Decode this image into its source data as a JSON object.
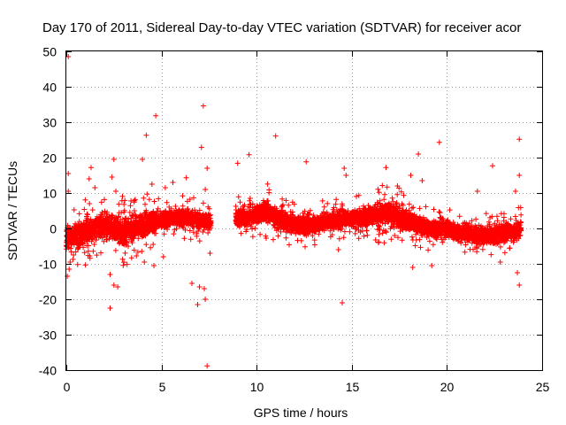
{
  "chart_data": {
    "type": "scatter",
    "title": "Day 170 of 2011, Sidereal Day-to-day VTEC variation (SDTVAR) for receiver acor",
    "xlabel": "GPS time / hours",
    "ylabel": "SDTVAR / TECUs",
    "xlim": [
      0,
      25
    ],
    "ylim": [
      -40,
      50
    ],
    "xticks": [
      "0",
      "5",
      "10",
      "15",
      "20",
      "25"
    ],
    "yticks": [
      "-40",
      "-30",
      "-20",
      "-10",
      "0",
      "10",
      "20",
      "30",
      "40",
      "50"
    ],
    "grid": true,
    "marker": "+",
    "color": "#ff0000",
    "data_gap": [
      7.6,
      8.9
    ],
    "series": [
      {
        "name": "SDTVAR",
        "band": {
          "x": [
            0.0,
            0.5,
            1.0,
            1.5,
            2.0,
            2.5,
            3.0,
            3.5,
            4.0,
            4.5,
            5.0,
            5.5,
            6.0,
            6.5,
            7.0,
            7.5,
            9.0,
            9.5,
            10.0,
            10.5,
            11.0,
            11.5,
            12.0,
            12.5,
            13.0,
            13.5,
            14.0,
            14.5,
            15.0,
            15.5,
            16.0,
            16.5,
            17.0,
            17.5,
            18.0,
            18.5,
            19.0,
            19.5,
            20.0,
            20.5,
            21.0,
            21.5,
            22.0,
            22.5,
            23.0,
            23.5,
            23.9
          ],
          "center": [
            -3,
            -2,
            -1,
            0,
            1,
            0,
            -1,
            0,
            1,
            2,
            2,
            3,
            3,
            3,
            2,
            2,
            3,
            3,
            4,
            5,
            3,
            2,
            1,
            1,
            1,
            2,
            2,
            3,
            3,
            3,
            4,
            4,
            4,
            3,
            2,
            1,
            0,
            0,
            0,
            -1,
            -1,
            -2,
            -2,
            -2,
            -1,
            -1,
            0
          ],
          "spread": [
            4,
            4,
            5,
            4,
            4,
            5,
            5,
            4,
            4,
            4,
            3,
            3,
            3,
            3,
            3,
            3,
            3,
            3,
            3,
            4,
            3,
            3,
            3,
            3,
            3,
            3,
            3,
            3,
            3,
            3,
            3,
            4,
            4,
            4,
            3,
            3,
            3,
            3,
            3,
            3,
            3,
            3,
            3,
            3,
            3,
            3,
            3
          ]
        },
        "outliers": [
          [
            0.1,
            48.5
          ],
          [
            0.1,
            15.5
          ],
          [
            0.1,
            10.5
          ],
          [
            0.05,
            -13.5
          ],
          [
            0.15,
            -11.5
          ],
          [
            0.2,
            -9.5
          ],
          [
            1.3,
            17.2
          ],
          [
            1.5,
            11.5
          ],
          [
            1.2,
            14.0
          ],
          [
            2.3,
            -22.5
          ],
          [
            2.5,
            19.5
          ],
          [
            2.4,
            14.5
          ],
          [
            2.6,
            10.5
          ],
          [
            2.7,
            -16.5
          ],
          [
            2.5,
            -16.0
          ],
          [
            2.3,
            -13.0
          ],
          [
            4.2,
            26.3
          ],
          [
            4.7,
            31.8
          ],
          [
            4.0,
            19.5
          ],
          [
            4.5,
            12.5
          ],
          [
            4.6,
            -10.5
          ],
          [
            4.1,
            -9.5
          ],
          [
            5.2,
            11.5
          ],
          [
            5.6,
            13.0
          ],
          [
            5.1,
            -8.0
          ],
          [
            6.6,
            -15.5
          ],
          [
            7.0,
            -16.5
          ],
          [
            6.9,
            -21.5
          ],
          [
            7.3,
            -20.0
          ],
          [
            7.25,
            -17.0
          ],
          [
            7.1,
            22.9
          ],
          [
            7.2,
            34.6
          ],
          [
            7.4,
            17.0
          ],
          [
            7.4,
            -38.8
          ],
          [
            7.55,
            -7.0
          ],
          [
            7.3,
            11.0
          ],
          [
            6.3,
            14.3
          ],
          [
            9.0,
            18.4
          ],
          [
            9.6,
            20.8
          ],
          [
            11.0,
            26.1
          ],
          [
            12.6,
            18.8
          ],
          [
            14.5,
            -21.0
          ],
          [
            14.6,
            17.0
          ],
          [
            14.7,
            15.0
          ],
          [
            14.3,
            -6.0
          ],
          [
            16.4,
            -4.0
          ],
          [
            16.8,
            17.2
          ],
          [
            17.4,
            12.0
          ],
          [
            18.1,
            15.0
          ],
          [
            18.5,
            21.0
          ],
          [
            18.7,
            13.5
          ],
          [
            19.6,
            24.3
          ],
          [
            19.2,
            -10.5
          ],
          [
            18.2,
            -11.0
          ],
          [
            22.4,
            17.7
          ],
          [
            21.6,
            10.5
          ],
          [
            23.6,
            10.5
          ],
          [
            23.8,
            25.2
          ],
          [
            23.8,
            15.0
          ],
          [
            23.8,
            -16.0
          ],
          [
            23.7,
            -12.5
          ],
          [
            22.8,
            -9.5
          ]
        ]
      }
    ]
  }
}
